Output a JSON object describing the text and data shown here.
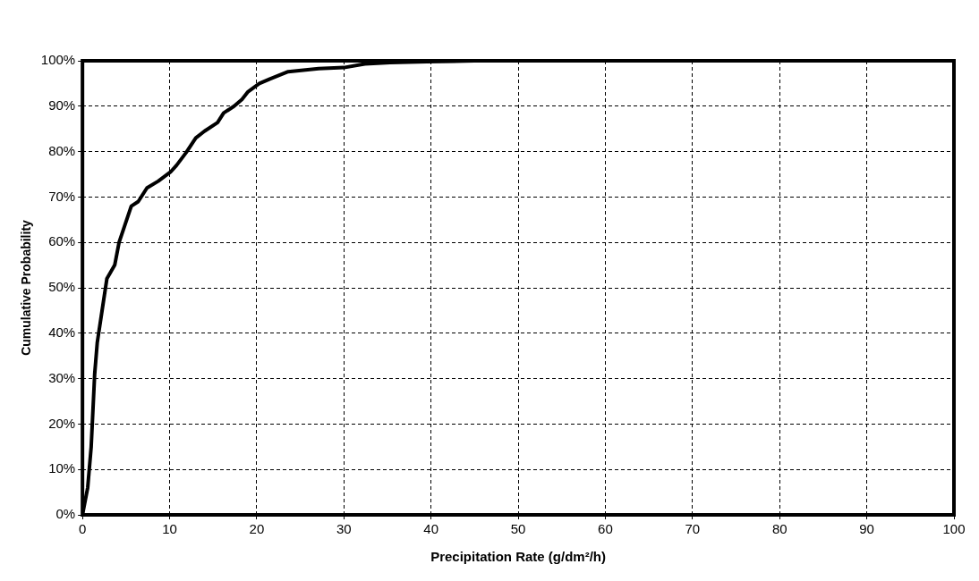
{
  "chart_data": {
    "type": "line",
    "xlabel": "Precipitation Rate (g/dm²/h)",
    "ylabel": "Cumulative Probability",
    "xlim": [
      0,
      100
    ],
    "xticks": [
      0,
      10,
      20,
      30,
      40,
      50,
      60,
      70,
      80,
      90,
      100
    ],
    "ylim": [
      0,
      100
    ],
    "yticks": [
      {
        "value": 0,
        "label": "0%"
      },
      {
        "value": 10,
        "label": "10%"
      },
      {
        "value": 20,
        "label": "20%"
      },
      {
        "value": 30,
        "label": "30%"
      },
      {
        "value": 40,
        "label": "40%"
      },
      {
        "value": 50,
        "label": "50%"
      },
      {
        "value": 60,
        "label": "60%"
      },
      {
        "value": 70,
        "label": "70%"
      },
      {
        "value": 80,
        "label": "80%"
      },
      {
        "value": 90,
        "label": "90%"
      },
      {
        "value": 100,
        "label": "100%"
      }
    ],
    "grid": true,
    "legend": false,
    "marker": "none",
    "line_style": "solid",
    "series": [
      {
        "color": "#000000",
        "x": [
          0,
          0.6,
          1,
          1.4,
          1.7,
          2.25,
          2.8,
          3.7,
          4.2,
          4.9,
          5.6,
          6.4,
          7.4,
          8.7,
          10.1,
          10.8,
          11.9,
          13,
          14,
          15.5,
          16.2,
          17.4,
          18.3,
          19,
          20.3,
          21.5,
          23.6,
          27.1,
          30,
          32.4,
          35.3,
          39.5,
          45,
          50,
          57
        ],
        "values": [
          0,
          6,
          15,
          31,
          38,
          45,
          52,
          55,
          60,
          64,
          68,
          69,
          72,
          73.5,
          75.5,
          77,
          79.8,
          83,
          84.5,
          86.4,
          88.5,
          90,
          91.5,
          93.2,
          95,
          96,
          97.6,
          98.3,
          98.5,
          99.3,
          99.6,
          99.8,
          100,
          100,
          100
        ]
      }
    ]
  }
}
